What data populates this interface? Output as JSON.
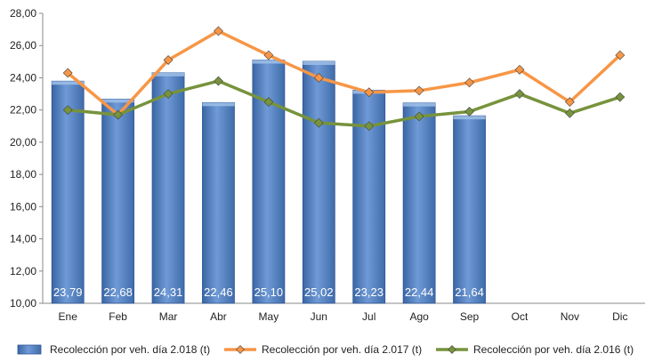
{
  "chart_data": {
    "type": "bar",
    "categories": [
      "Ene",
      "Feb",
      "Mar",
      "Abr",
      "May",
      "Jun",
      "Jul",
      "Ago",
      "Sep",
      "Oct",
      "Nov",
      "Dic"
    ],
    "series": [
      {
        "name": "Recolección por veh. día 2.018 (t)",
        "kind": "bar",
        "color": "#4F81BD",
        "values": [
          23.79,
          22.68,
          24.31,
          22.46,
          25.1,
          25.02,
          23.23,
          22.44,
          21.64,
          null,
          null,
          null
        ],
        "data_labels": [
          "23,79",
          "22,68",
          "24,31",
          "22,46",
          "25,10",
          "25,02",
          "23,23",
          "22,44",
          "21,64"
        ]
      },
      {
        "name": "Recolección por veh. día 2.017 (t)",
        "kind": "line",
        "color": "#F79646",
        "values": [
          24.3,
          21.7,
          25.1,
          26.9,
          25.4,
          24.0,
          23.1,
          23.2,
          23.7,
          24.5,
          22.5,
          25.4
        ]
      },
      {
        "name": "Recolección por veh. día 2.016 (t)",
        "kind": "line",
        "color": "#77933C",
        "values": [
          22.0,
          21.7,
          23.0,
          23.8,
          22.5,
          21.2,
          21.0,
          21.6,
          21.9,
          23.0,
          21.8,
          22.8
        ]
      }
    ],
    "y_ticks": [
      "10,00",
      "12,00",
      "14,00",
      "16,00",
      "18,00",
      "20,00",
      "22,00",
      "24,00",
      "26,00",
      "28,00"
    ],
    "ylim": [
      10,
      28
    ],
    "grid": false,
    "legend_position": "bottom"
  }
}
